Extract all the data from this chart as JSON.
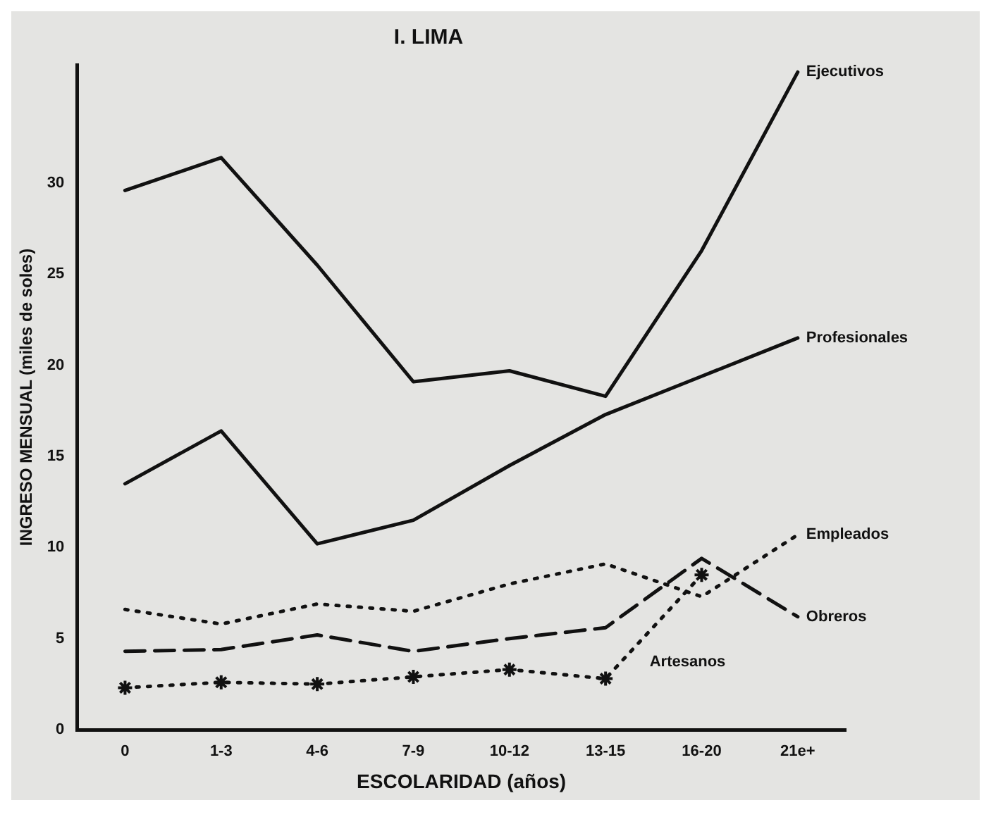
{
  "chart_data": {
    "type": "line",
    "title": "I. LIMA",
    "xlabel": "ESCOLARIDAD (años)",
    "ylabel": "INGRESO MENSUAL (miles de soles)",
    "categories": [
      "0",
      "1-3",
      "4-6",
      "7-9",
      "10-12",
      "13-15",
      "16-20",
      "21e+"
    ],
    "ylim": [
      0,
      36.5
    ],
    "yticks": [
      0,
      5,
      10,
      15,
      20,
      25,
      30
    ],
    "grid": false,
    "legend": false,
    "marker": "none",
    "series": [
      {
        "name": "Ejecutivos",
        "color": "#111111",
        "line_style": "solid",
        "values": [
          29.6,
          31.4,
          25.5,
          19.1,
          19.7,
          18.3,
          26.3,
          36.1
        ]
      },
      {
        "name": "Profesionales",
        "color": "#111111",
        "line_style": "solid",
        "values": [
          13.5,
          16.4,
          10.2,
          11.5,
          14.5,
          17.3,
          19.4,
          21.5
        ]
      },
      {
        "name": "Empleados",
        "color": "#111111",
        "line_style": "dotted",
        "values": [
          6.6,
          5.8,
          6.9,
          6.5,
          8.0,
          9.1,
          7.3,
          10.7
        ]
      },
      {
        "name": "Obreros",
        "color": "#111111",
        "line_style": "dashed",
        "values": [
          4.3,
          4.4,
          5.2,
          4.3,
          5.0,
          5.6,
          9.4,
          6.2
        ]
      },
      {
        "name": "Artesanos",
        "color": "#111111",
        "line_style": "dotted",
        "marker": "cross",
        "values": [
          2.3,
          2.6,
          2.5,
          2.9,
          3.3,
          2.8,
          8.5,
          null
        ]
      }
    ]
  }
}
